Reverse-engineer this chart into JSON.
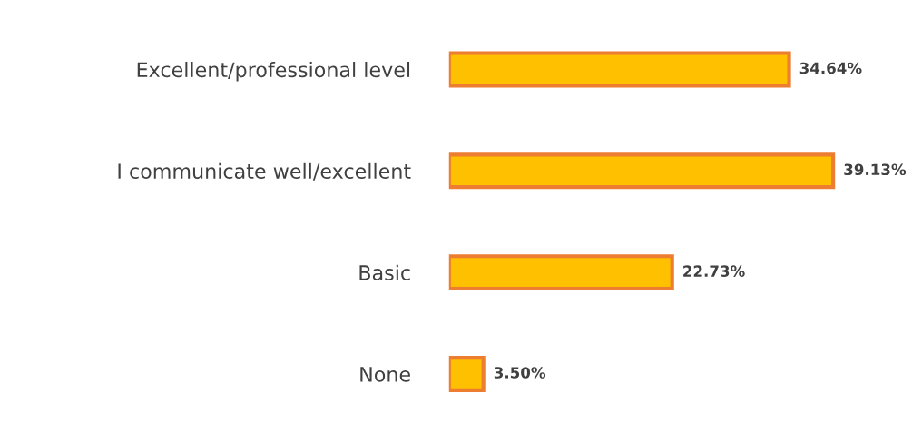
{
  "chart_data": {
    "type": "bar",
    "orientation": "horizontal",
    "categories": [
      "Excellent/professional level",
      "I communicate well/excellent",
      "Basic",
      "None"
    ],
    "values": [
      34.64,
      39.13,
      22.73,
      3.5
    ],
    "color": "#ffc000",
    "value_labels": [
      "34.64%",
      "39.13%",
      "22.73%",
      "3.50%"
    ],
    "grid": false,
    "legend": false
  }
}
